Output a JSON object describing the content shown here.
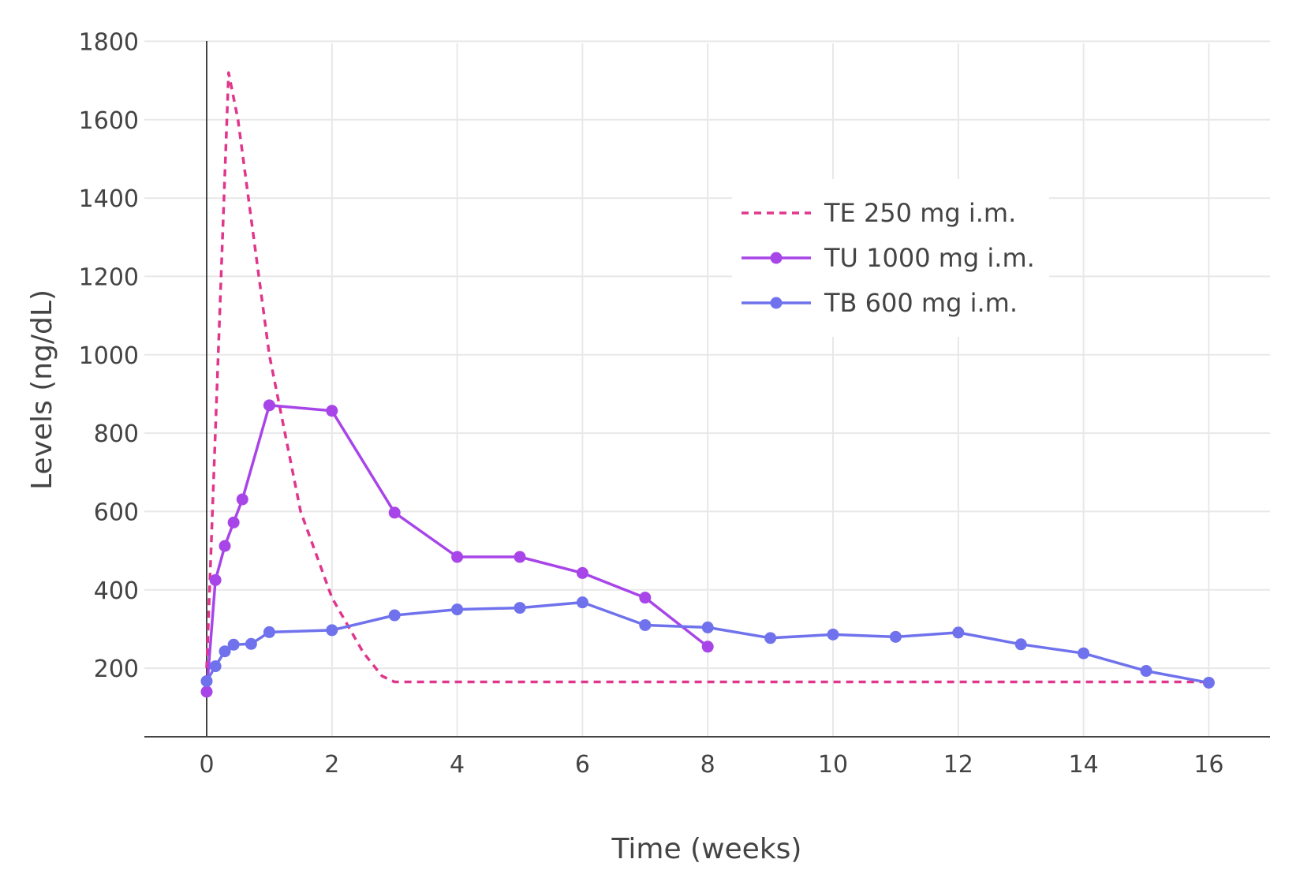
{
  "chart_data": {
    "type": "line",
    "xlabel": "Time (weeks)",
    "ylabel": "Levels (ng/dL)",
    "xlim": [
      -1,
      17
    ],
    "ylim": [
      25,
      1825
    ],
    "x_ticks": [
      0,
      2,
      4,
      6,
      8,
      10,
      12,
      14,
      16
    ],
    "y_ticks": [
      200,
      400,
      600,
      800,
      1000,
      1200,
      1400,
      1600,
      1800
    ],
    "grid": true,
    "legend": {
      "placement": "top-right"
    },
    "series": [
      {
        "name": "TE 250 mg i.m.",
        "color": "#e0368c",
        "dash": "dot",
        "markers": false,
        "x": [
          0,
          0.35,
          0.5,
          1.0,
          1.5,
          2.0,
          2.5,
          2.8,
          3.0,
          4,
          8,
          12,
          16
        ],
        "y": [
          200,
          1720,
          1600,
          1000,
          600,
          380,
          240,
          180,
          165,
          165,
          165,
          165,
          165
        ]
      },
      {
        "name": "TU 1000 mg i.m.",
        "color": "#a845e8",
        "dash": "solid",
        "markers": true,
        "x": [
          0,
          0.14,
          0.29,
          0.43,
          0.57,
          1,
          2,
          3,
          4,
          5,
          6,
          7,
          8
        ],
        "y": [
          140,
          425,
          512,
          572,
          631,
          871,
          857,
          597,
          484,
          484,
          443,
          380,
          255
        ]
      },
      {
        "name": "TB 600 mg i.m.",
        "color": "#6f72ec",
        "dash": "solid",
        "markers": true,
        "x": [
          0,
          0.14,
          0.29,
          0.43,
          0.71,
          1,
          2,
          3,
          4,
          5,
          6,
          7,
          8,
          9,
          10,
          11,
          12,
          13,
          14,
          15,
          16
        ],
        "y": [
          167,
          205,
          243,
          260,
          262,
          292,
          297,
          335,
          350,
          354,
          368,
          310,
          304,
          277,
          286,
          280,
          291,
          261,
          238,
          193,
          163
        ]
      }
    ]
  }
}
